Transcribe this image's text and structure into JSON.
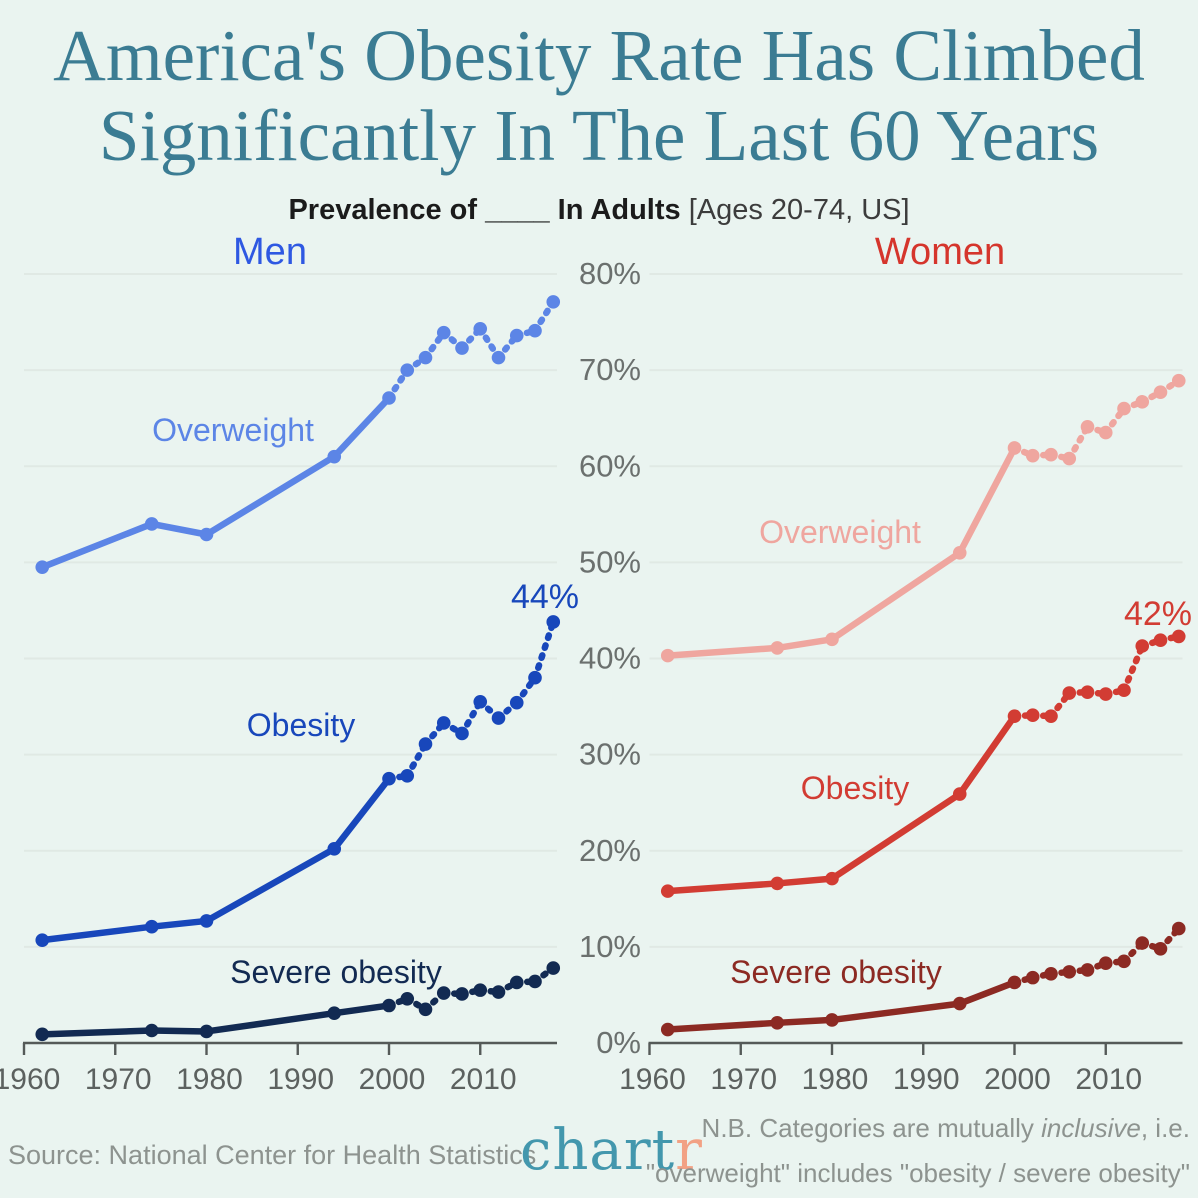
{
  "page": {
    "title_line1": "America's Obesity Rate Has Climbed",
    "title_line2": "Significantly In The Last 60 Years",
    "subtitle_bold": "Prevalence of ____ In Adults",
    "subtitle_bracket": "[Ages 20-74, US]",
    "footer": {
      "source": "Source: National Center for Health Statistics",
      "logo_chart": "chart",
      "logo_r": "r",
      "note_line1_pre": "N.B. Categories are mutually ",
      "note_line1_italic": "inclusive",
      "note_line1_post": ", i.e.",
      "note_line2": "\"overweight\" includes \"obesity / severe obesity\""
    },
    "colors": {
      "bg": "#eaf4f0",
      "title": "#3b7c93",
      "subtitle": "#1b1b1b",
      "subtitleLight": "#3c3c3c",
      "footerGray": "#8d938f",
      "logoTeal": "#4397ad",
      "logoOrange": "#f2a184",
      "grid": "#e0e9e4",
      "axis": "#555a58",
      "tickLabel": "#5c615f",
      "yLabel": "#6b706e"
    }
  },
  "chart_data": {
    "type": "line",
    "title": "Prevalence of ____ In Adults [Ages 20-74, US]",
    "x": [
      1962,
      1974,
      1980,
      1994,
      2000,
      2002,
      2004,
      2006,
      2008,
      2010,
      2012,
      2014,
      2016,
      2018
    ],
    "x_ticks": [
      1960,
      1970,
      1980,
      1990,
      2000,
      2010
    ],
    "ylim": [
      0,
      80
    ],
    "y_tick_labels": [
      "0%",
      "10%",
      "20%",
      "30%",
      "40%",
      "50%",
      "60%",
      "70%",
      "80%"
    ],
    "grid": true,
    "panels": [
      {
        "id": "men",
        "title": "Men",
        "title_color": "#2e58e2",
        "series": [
          {
            "id": "overweight",
            "label": "Overweight",
            "color": "#5c85e6",
            "values": [
              49.5,
              54.0,
              52.9,
              61.0,
              67.1,
              70.0,
              71.3,
              73.9,
              72.3,
              74.3,
              71.3,
              73.6,
              74.1,
              77.1
            ]
          },
          {
            "id": "obesity",
            "label": "Obesity",
            "color": "#1847bb",
            "annotation": "44%",
            "values": [
              10.7,
              12.1,
              12.7,
              20.2,
              27.5,
              27.8,
              31.1,
              33.3,
              32.2,
              35.5,
              33.8,
              35.4,
              38.0,
              43.8
            ]
          },
          {
            "id": "severe",
            "label": "Severe obesity",
            "color": "#122a52",
            "values": [
              0.9,
              1.3,
              1.2,
              3.1,
              3.9,
              4.6,
              3.5,
              5.2,
              5.1,
              5.5,
              5.3,
              6.3,
              6.4,
              7.8
            ]
          }
        ]
      },
      {
        "id": "women",
        "title": "Women",
        "title_color": "#d5352c",
        "series": [
          {
            "id": "overweight",
            "label": "Overweight",
            "color": "#efa69f",
            "values": [
              40.3,
              41.1,
              42.0,
              51.0,
              61.9,
              61.1,
              61.2,
              60.8,
              64.1,
              63.5,
              66.0,
              66.7,
              67.7,
              68.9
            ]
          },
          {
            "id": "obesity",
            "label": "Obesity",
            "color": "#d23c33",
            "annotation": "42%",
            "values": [
              15.8,
              16.6,
              17.1,
              25.9,
              34.0,
              34.1,
              34.0,
              36.4,
              36.5,
              36.3,
              36.7,
              41.3,
              41.9,
              42.3
            ]
          },
          {
            "id": "severe",
            "label": "Severe obesity",
            "color": "#8c2a23",
            "values": [
              1.4,
              2.1,
              2.4,
              4.1,
              6.3,
              6.8,
              7.2,
              7.4,
              7.6,
              8.3,
              8.5,
              10.4,
              9.8,
              11.9
            ]
          }
        ]
      }
    ]
  }
}
